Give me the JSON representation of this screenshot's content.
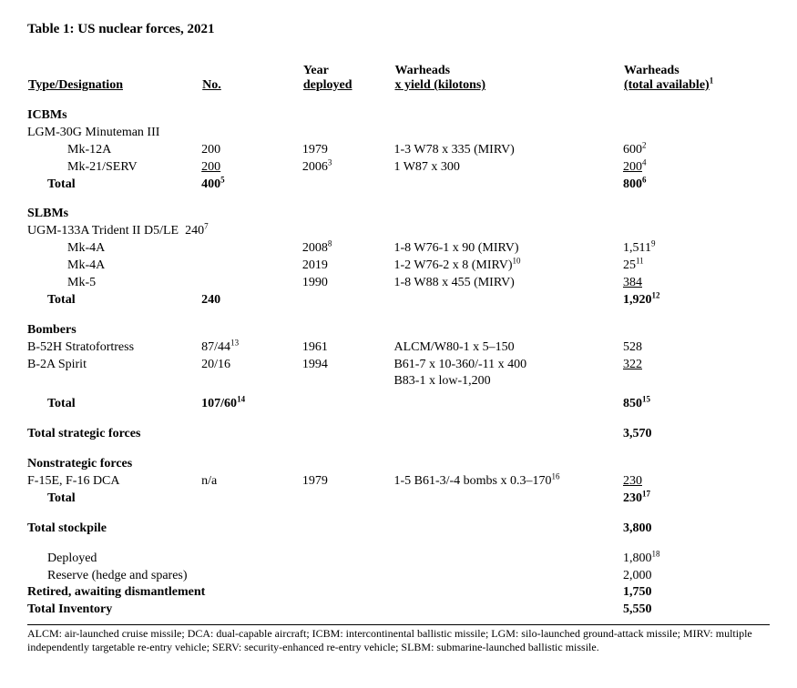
{
  "title": "Table 1: US nuclear forces, 2021",
  "headers": {
    "type": "Type/Designation",
    "no": "No.",
    "year_line1": "Year",
    "year_line2": "deployed",
    "warheads_yield_line1": "Warheads",
    "warheads_yield_line2": "x yield (kilotons)",
    "warheads_total_line1": "Warheads",
    "warheads_total_line2": "(total available)",
    "warheads_total_sup": "1"
  },
  "sections": {
    "icbms": {
      "heading": "ICBMs",
      "platform": "LGM-30G Minuteman III",
      "rows": [
        {
          "name": "Mk-12A",
          "no": "200",
          "no_uline": false,
          "year": "1979",
          "yield": "1-3 W78 x 335 (MIRV)",
          "total": "600",
          "total_sup": "2",
          "total_uline": false
        },
        {
          "name": "Mk-21/SERV",
          "no": "200",
          "no_uline": true,
          "year": "2006",
          "year_sup": "3",
          "yield": "1 W87 x 300",
          "total": "200",
          "total_sup": "4",
          "total_uline": true
        }
      ],
      "total": {
        "label": "Total",
        "no": "400",
        "no_sup": "5",
        "total": "800",
        "total_sup": "6"
      }
    },
    "slbms": {
      "heading": "SLBMs",
      "platform": "UGM-133A Trident II D5/LE",
      "platform_no": "240",
      "platform_no_sup": "7",
      "rows": [
        {
          "name": "Mk-4A",
          "year": "2008",
          "year_sup": "8",
          "yield": "1-8 W76-1 x 90 (MIRV)",
          "total": "1,511",
          "total_sup": "9"
        },
        {
          "name": "Mk-4A",
          "year": "2019",
          "yield": "1-2 W76-2 x 8 (MIRV)",
          "yield_sup": "10",
          "total": "25",
          "total_sup": "11"
        },
        {
          "name": "Mk-5",
          "year": "1990",
          "yield": "1-8 W88 x 455 (MIRV)",
          "total": "384",
          "total_uline": true
        }
      ],
      "total": {
        "label": "Total",
        "no": "240",
        "total": "1,920",
        "total_sup": "12"
      }
    },
    "bombers": {
      "heading": "Bombers",
      "rows": [
        {
          "name": "B-52H Stratofortress",
          "no": "87/44",
          "no_sup": "13",
          "year": "1961",
          "yield": "ALCM/W80-1 x 5–150",
          "total": "528"
        },
        {
          "name": "B-2A Spirit",
          "no": "20/16",
          "year": "1994",
          "yield": "B61-7 x 10-360/-11 x 400",
          "total": "322",
          "total_uline": true
        },
        {
          "yield": "B83-1 x low-1,200"
        }
      ],
      "total": {
        "label": "Total",
        "no": "107/60",
        "no_sup": "14",
        "total": "850",
        "total_sup": "15"
      }
    },
    "strategic_total": {
      "label": "Total strategic forces",
      "total": "3,570"
    },
    "nonstrategic": {
      "heading": "Nonstrategic forces",
      "rows": [
        {
          "name": "F-15E, F-16 DCA",
          "no": "n/a",
          "year": "1979",
          "yield": "1-5 B61-3/-4 bombs x 0.3–170",
          "yield_sup": "16",
          "total": "230",
          "total_uline": true
        }
      ],
      "total": {
        "label": "Total",
        "total": "230",
        "total_sup": "17"
      }
    },
    "stockpile": {
      "label": "Total stockpile",
      "total": "3,800"
    },
    "deployed": {
      "label": "Deployed",
      "total": "1,800",
      "total_sup": "18"
    },
    "reserve": {
      "label": "Reserve (hedge and spares)",
      "total": "2,000"
    },
    "retired": {
      "label": "Retired, awaiting dismantlement",
      "total": "1,750"
    },
    "inventory": {
      "label": "Total Inventory",
      "total": "5,550"
    }
  },
  "footnote": "ALCM: air-launched cruise missile; DCA: dual-capable aircraft; ICBM: intercontinental ballistic missile; LGM: silo-launched ground-attack missile; MIRV: multiple independently targetable re-entry vehicle; SERV: security-enhanced re-entry vehicle; SLBM: submarine-launched ballistic missile."
}
